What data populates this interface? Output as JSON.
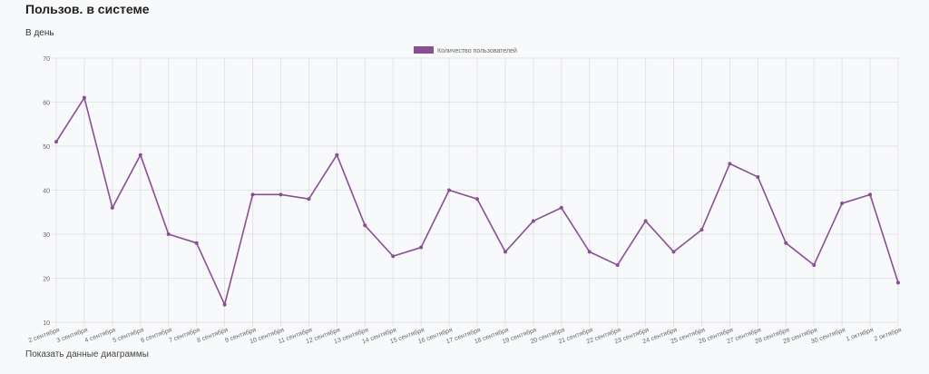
{
  "header": {
    "title": "Пользов. в системе",
    "subtitle": "В день"
  },
  "footer": {
    "show_data_label": "Показать данные диаграммы"
  },
  "colors": {
    "series": "#8a4f93",
    "grid": "#e3e4e6",
    "tick_text": "#666666"
  },
  "chart_data": {
    "type": "line",
    "title": "",
    "xlabel": "",
    "ylabel": "",
    "ylim": [
      10,
      70
    ],
    "yticks": [
      10,
      20,
      30,
      40,
      50,
      60,
      70
    ],
    "grid": true,
    "legend_position": "top-center",
    "categories": [
      "2 сентября",
      "3 сентября",
      "4 сентября",
      "5 сентября",
      "6 сентября",
      "7 сентября",
      "8 сентября",
      "9 сентября",
      "10 сентября",
      "11 сентября",
      "12 сентября",
      "13 сентября",
      "14 сентября",
      "15 сентября",
      "16 сентября",
      "17 сентября",
      "18 сентября",
      "19 сентября",
      "20 сентября",
      "21 сентября",
      "22 сентября",
      "23 сентября",
      "24 сентября",
      "25 сентября",
      "26 сентября",
      "27 сентября",
      "28 сентября",
      "29 сентября",
      "30 сентября",
      "1 октября",
      "2 октября"
    ],
    "series": [
      {
        "name": "Количество пользователей",
        "values": [
          51,
          61,
          36,
          48,
          30,
          28,
          14,
          39,
          39,
          38,
          48,
          32,
          25,
          27,
          40,
          38,
          26,
          33,
          36,
          26,
          23,
          33,
          26,
          31,
          46,
          43,
          28,
          23,
          37,
          39,
          19
        ]
      }
    ]
  }
}
